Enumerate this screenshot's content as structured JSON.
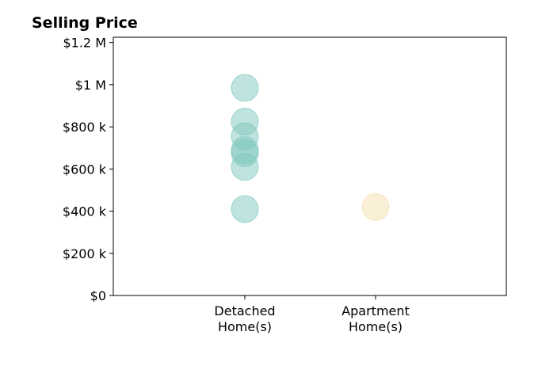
{
  "chart_data": {
    "type": "scatter",
    "title": "Selling Price",
    "xlabel": "",
    "ylabel": "",
    "categories": [
      "Detached\nHome(s)",
      "Apartment\nHome(s)"
    ],
    "ylim": [
      0,
      1225000
    ],
    "yticks": [
      0,
      200000,
      400000,
      600000,
      800000,
      1000000,
      1200000
    ],
    "ytick_labels": [
      "$0",
      "$200 k",
      "$400 k",
      "$600 k",
      "$800 k",
      "$1 M",
      "$1.2 M"
    ],
    "grid": false,
    "series": [
      {
        "category": "Detached\nHome(s)",
        "color": "#7fc7bd",
        "values": [
          985000,
          825000,
          755000,
          690000,
          675000,
          610000,
          410000
        ]
      },
      {
        "category": "Apartment\nHome(s)",
        "color": "#f5dfb0",
        "values": [
          420000
        ]
      }
    ]
  }
}
